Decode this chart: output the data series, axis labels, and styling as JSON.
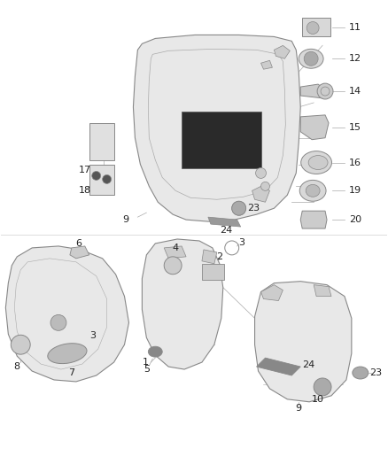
{
  "bg_color": "#ffffff",
  "fig_width": 4.38,
  "fig_height": 5.33,
  "dpi": 100,
  "line_color": "#aaaaaa",
  "text_color": "#222222",
  "edge_color": "#888888",
  "part_fill": "#e8e8e8",
  "part_fill2": "#d8d8d8"
}
